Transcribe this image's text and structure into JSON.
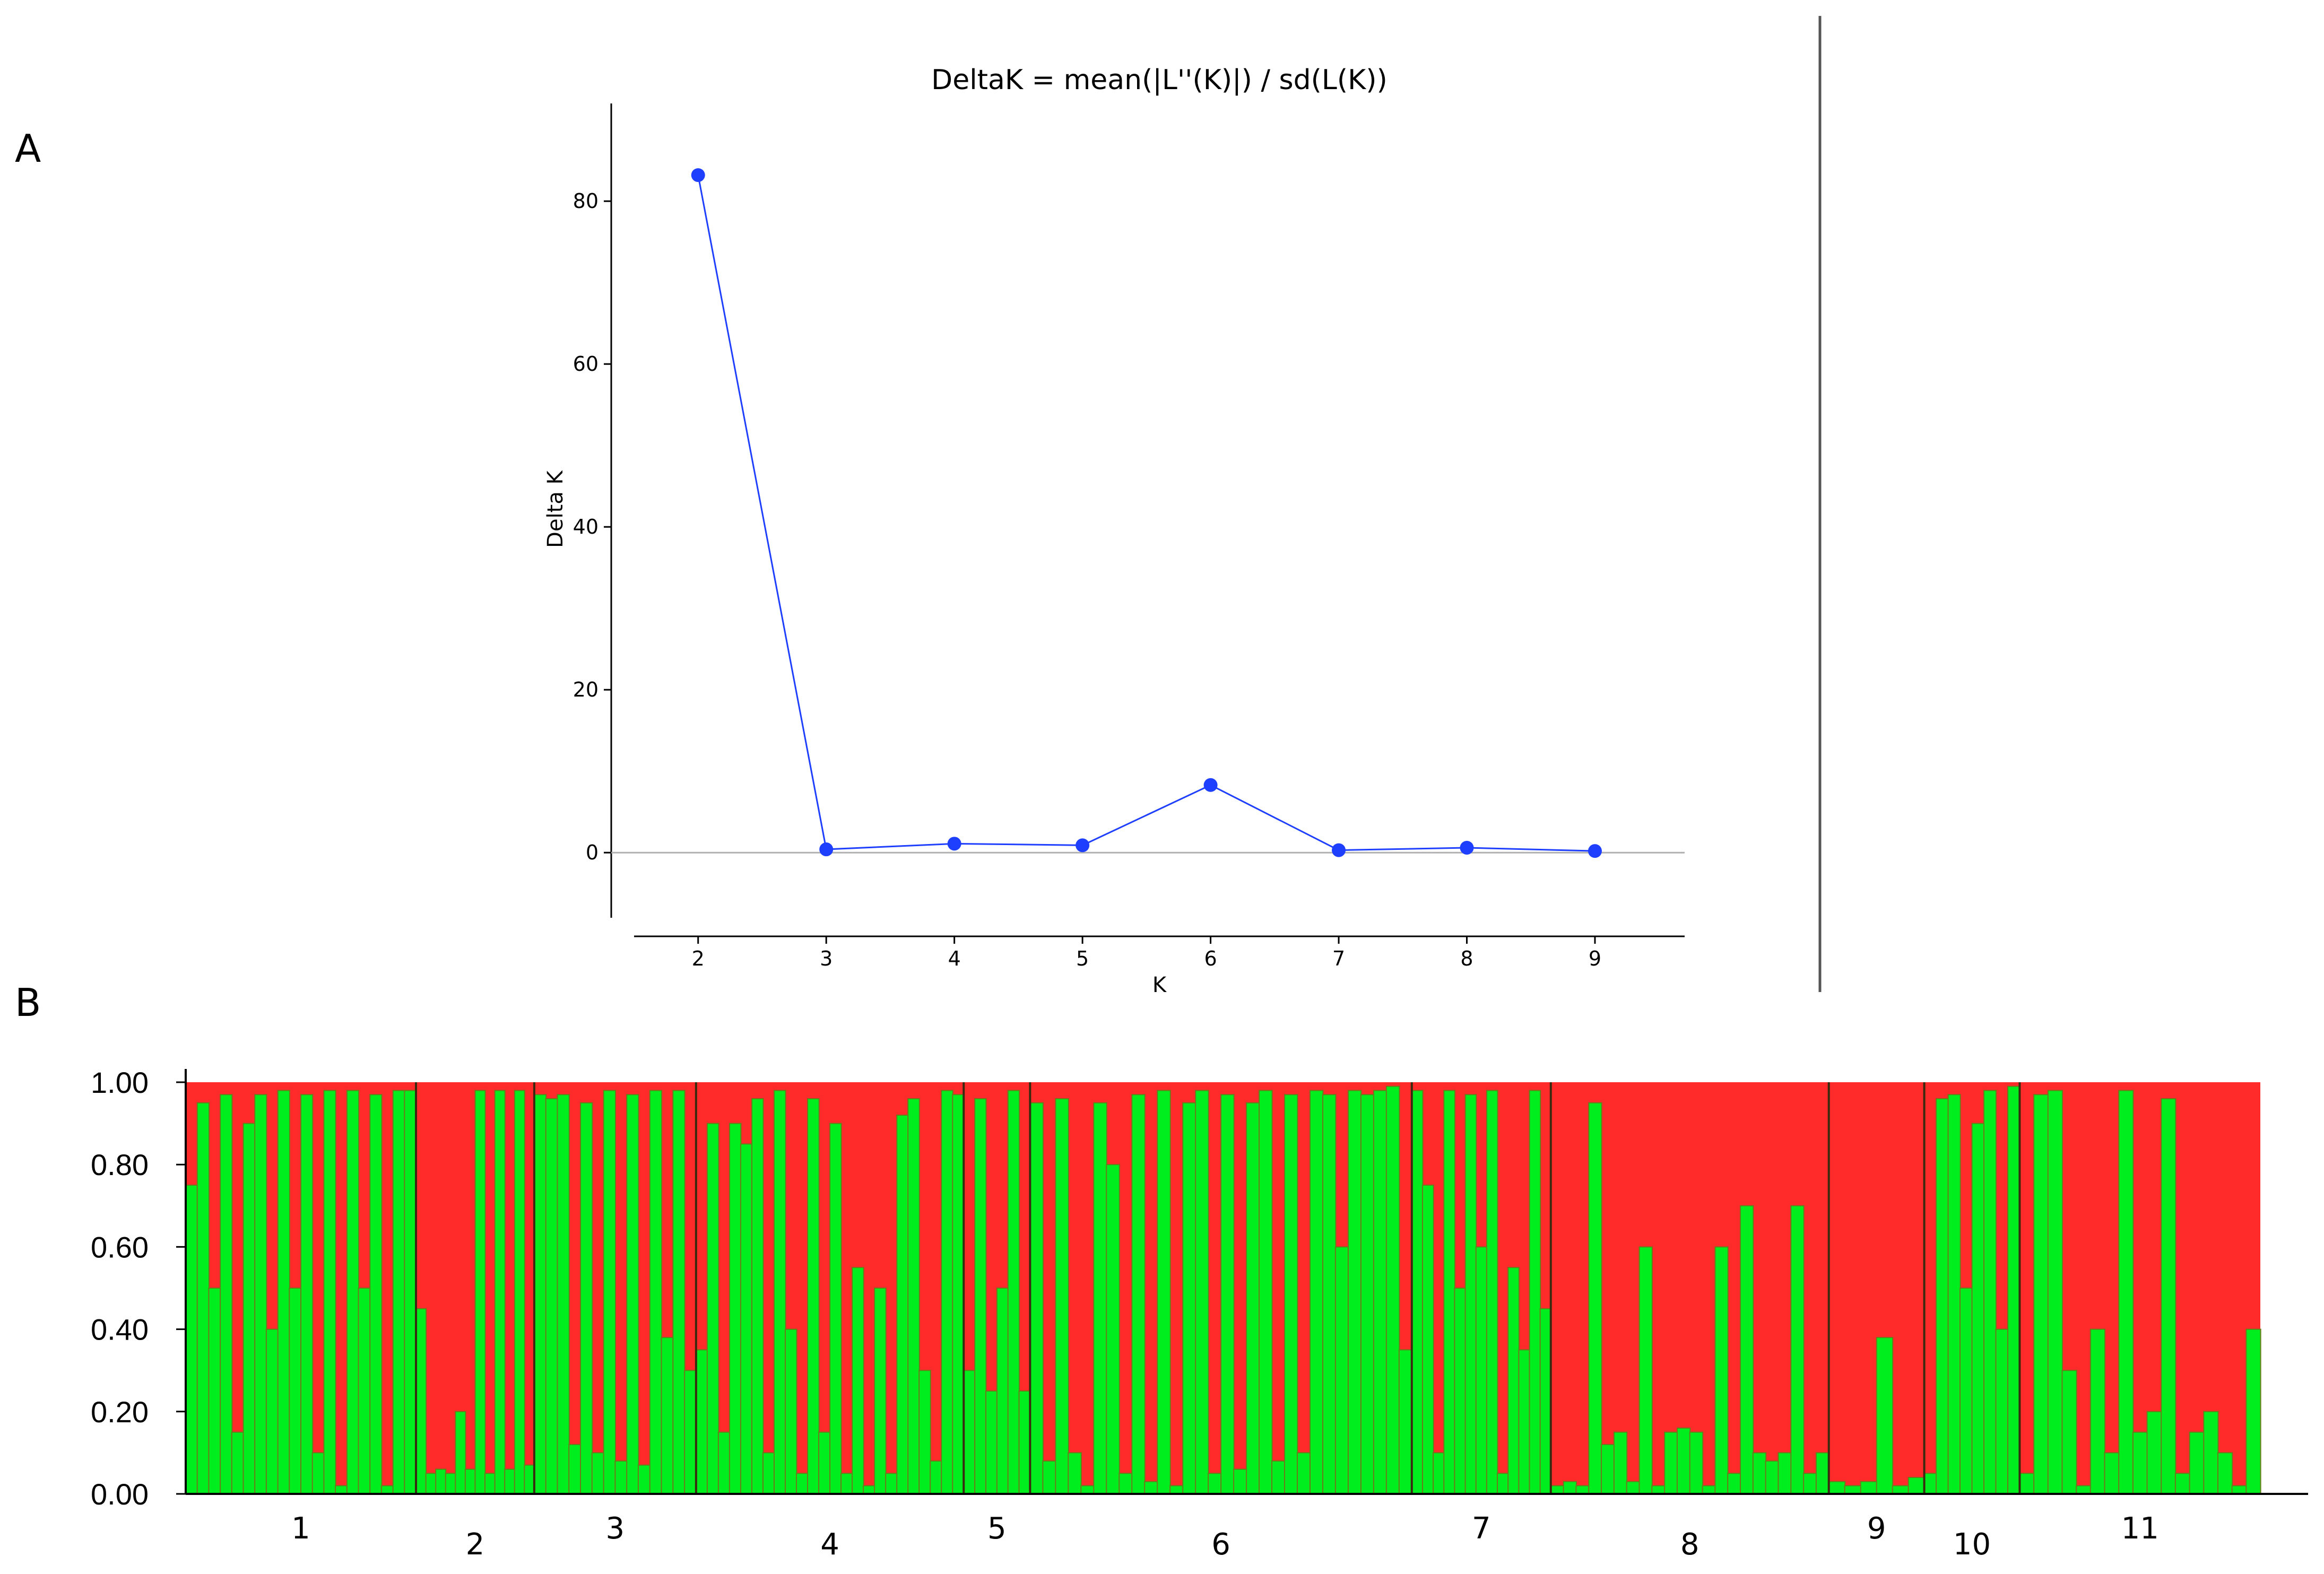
{
  "panels": {
    "a_label": "A",
    "b_label": "B"
  },
  "chart_data": [
    {
      "type": "line",
      "title": "DeltaK = mean(|L''(K)|) / sd(L(K))",
      "xlabel": "K",
      "ylabel": "Delta K",
      "x": [
        2,
        3,
        4,
        5,
        6,
        7,
        8,
        9
      ],
      "y": [
        83.2,
        0.4,
        1.1,
        0.9,
        8.3,
        0.3,
        0.6,
        0.2
      ],
      "xticks": [
        "2",
        "3",
        "4",
        "5",
        "6",
        "7",
        "8",
        "9"
      ],
      "yticks": [
        "0",
        "20",
        "40",
        "60",
        "80"
      ],
      "xlim": [
        1.5,
        9.7
      ],
      "ylim": [
        -8,
        92
      ],
      "color": "#1f3fff",
      "zero_line_color": "#b0b0b0"
    },
    {
      "type": "bar",
      "stacked": true,
      "description": "STRUCTURE admixture barplot, K=2",
      "yticks": [
        "0.00",
        "0.20",
        "0.40",
        "0.60",
        "0.80",
        "1.00"
      ],
      "ylim": [
        0,
        1
      ],
      "colors": {
        "cluster1": "#00ee1d",
        "cluster2": "#ff2a2a",
        "edge": "#6b7a1a"
      },
      "groups": [
        "1",
        "2",
        "3",
        "4",
        "5",
        "6",
        "7",
        "8",
        "9",
        "10",
        "11"
      ],
      "group_bounds": [
        0,
        0.111,
        0.168,
        0.246,
        0.375,
        0.407,
        0.591,
        0.658,
        0.792,
        0.838,
        0.884,
        1.0
      ],
      "cluster1_by_segment": [
        [
          0.111,
          [
            0.75,
            0.95,
            0.5,
            0.97,
            0.15,
            0.9,
            0.97,
            0.4,
            0.98,
            0.5,
            0.97,
            0.1,
            0.98,
            0.02,
            0.98,
            0.5,
            0.97,
            0.02,
            0.98,
            0.98
          ]
        ],
        [
          0.057,
          [
            0.45,
            0.05,
            0.06,
            0.05,
            0.2,
            0.06,
            0.98,
            0.05,
            0.98,
            0.06,
            0.98,
            0.07
          ]
        ],
        [
          0.078,
          [
            0.97,
            0.96,
            0.97,
            0.12,
            0.95,
            0.1,
            0.98,
            0.08,
            0.97,
            0.07,
            0.98,
            0.38,
            0.98,
            0.3
          ]
        ],
        [
          0.129,
          [
            0.35,
            0.9,
            0.15,
            0.9,
            0.85,
            0.96,
            0.1,
            0.98,
            0.4,
            0.05,
            0.96,
            0.15,
            0.9,
            0.05,
            0.55,
            0.02,
            0.5,
            0.05,
            0.92,
            0.96,
            0.3,
            0.08,
            0.98,
            0.97
          ]
        ],
        [
          0.032,
          [
            0.3,
            0.96,
            0.25,
            0.5,
            0.98,
            0.25
          ]
        ],
        [
          0.184,
          [
            0.95,
            0.08,
            0.96,
            0.1,
            0.02,
            0.95,
            0.8,
            0.05,
            0.97,
            0.03,
            0.98,
            0.02,
            0.95,
            0.98,
            0.05,
            0.97,
            0.06,
            0.95,
            0.98,
            0.08,
            0.97,
            0.1,
            0.98,
            0.97,
            0.6,
            0.98,
            0.97,
            0.98,
            0.99,
            0.35
          ]
        ],
        [
          0.067,
          [
            0.98,
            0.75,
            0.1,
            0.98,
            0.5,
            0.97,
            0.6,
            0.98,
            0.05,
            0.55,
            0.35,
            0.98,
            0.45
          ]
        ],
        [
          0.134,
          [
            0.02,
            0.03,
            0.02,
            0.95,
            0.12,
            0.15,
            0.03,
            0.6,
            0.02,
            0.15,
            0.16,
            0.15,
            0.02,
            0.6,
            0.05,
            0.7,
            0.1,
            0.08,
            0.1,
            0.7,
            0.05,
            0.1
          ]
        ],
        [
          0.046,
          [
            0.03,
            0.02,
            0.03,
            0.38,
            0.02,
            0.04
          ]
        ],
        [
          0.046,
          [
            0.05,
            0.96,
            0.97,
            0.5,
            0.9,
            0.98,
            0.4,
            0.99
          ]
        ],
        [
          0.116,
          [
            0.05,
            0.97,
            0.98,
            0.3,
            0.02,
            0.4,
            0.1,
            0.98,
            0.15,
            0.2,
            0.96,
            0.05,
            0.15,
            0.2,
            0.1,
            0.02,
            0.4
          ]
        ]
      ]
    }
  ]
}
